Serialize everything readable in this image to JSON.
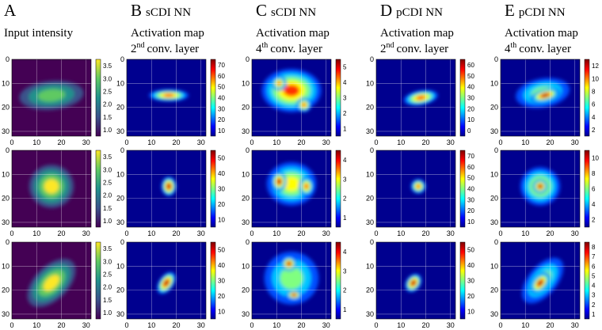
{
  "axis_ticks": [
    0,
    10,
    20,
    30
  ],
  "columns": [
    {
      "letter": "A",
      "title": "Input intensity",
      "colorbar_ticks": [
        [
          "1.0",
          "1.5",
          "2.0",
          "2.5",
          "3.0",
          "3.5"
        ],
        [
          "1.0",
          "1.5",
          "2.0",
          "2.5",
          "3.0",
          "3.5"
        ],
        [
          "1.0",
          "1.5",
          "2.0",
          "2.5",
          "3.0",
          "3.5"
        ]
      ]
    },
    {
      "letter": "B",
      "subtitle": "sCDI NN",
      "title": "Activation map",
      "layer": {
        "number": "2",
        "suffix": "nd",
        "text": "conv. layer"
      },
      "colorbar_ticks": [
        [
          "10",
          "20",
          "30",
          "40",
          "50",
          "60",
          "70"
        ],
        [
          "10",
          "20",
          "30",
          "40",
          "50"
        ],
        [
          "10",
          "20",
          "30",
          "40",
          "50"
        ]
      ]
    },
    {
      "letter": "C",
      "subtitle": "sCDI NN",
      "title": "Activation map",
      "layer": {
        "number": "4",
        "suffix": "th",
        "text": "conv. layer"
      },
      "colorbar_ticks": [
        [
          "1",
          "2",
          "3",
          "4",
          "5"
        ],
        [
          "1",
          "2",
          "3",
          "4"
        ],
        [
          "1",
          "2",
          "3",
          "4"
        ]
      ]
    },
    {
      "letter": "D",
      "subtitle": "pCDI NN",
      "title": "Activation map",
      "layer": {
        "number": "2",
        "suffix": "nd",
        "text": "conv. layer"
      },
      "colorbar_ticks": [
        [
          "0",
          "10",
          "20",
          "30",
          "40",
          "50",
          "60"
        ],
        [
          "10",
          "20",
          "30",
          "40",
          "50",
          "60",
          "70"
        ],
        [
          "10",
          "20",
          "30",
          "40",
          "50"
        ]
      ]
    },
    {
      "letter": "E",
      "subtitle": "pCDI NN",
      "title": "Activation map",
      "layer": {
        "number": "4",
        "suffix": "th",
        "text": "conv. layer"
      },
      "colorbar_ticks": [
        [
          "2",
          "4",
          "6",
          "8",
          "10",
          "12"
        ],
        [
          "2",
          "4",
          "6",
          "8",
          "10"
        ],
        [
          "1",
          "2",
          "3",
          "4",
          "5",
          "6",
          "7",
          "8"
        ]
      ]
    }
  ]
}
